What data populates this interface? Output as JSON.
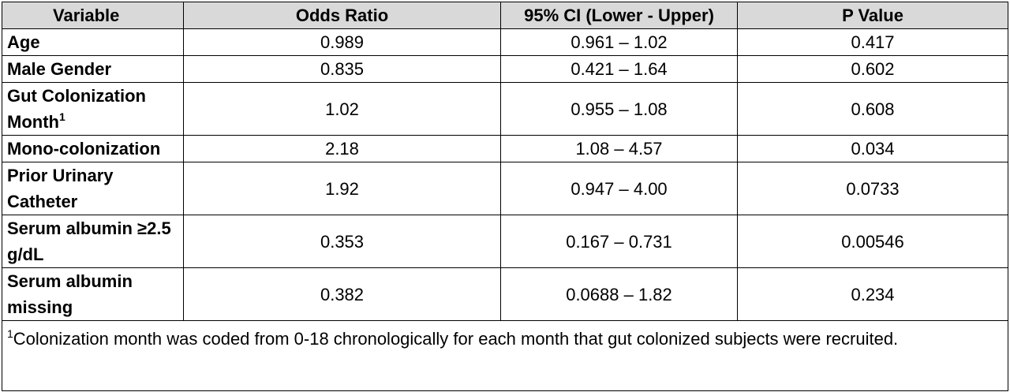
{
  "table": {
    "headers": [
      "Variable",
      "Odds Ratio",
      "95% CI (Lower - Upper)",
      "P Value"
    ],
    "rows": [
      {
        "variable": "Age",
        "sup": "",
        "odds_ratio": "0.989",
        "ci": "0.961 – 1.02",
        "p": "0.417",
        "tall": false
      },
      {
        "variable": "Male Gender",
        "sup": "",
        "odds_ratio": "0.835",
        "ci": "0.421 – 1.64",
        "p": "0.602",
        "tall": false
      },
      {
        "variable": "Gut Colonization Month",
        "sup": "1",
        "odds_ratio": "1.02",
        "ci": "0.955 – 1.08",
        "p": "0.608",
        "tall": true
      },
      {
        "variable": "Mono-colonization",
        "sup": "",
        "odds_ratio": "2.18",
        "ci": "1.08 – 4.57",
        "p": "0.034",
        "tall": false
      },
      {
        "variable": "Prior Urinary Catheter",
        "sup": "",
        "odds_ratio": "1.92",
        "ci": "0.947 – 4.00",
        "p": "0.0733",
        "tall": true
      },
      {
        "variable": "Serum albumin ≥2.5 g/dL",
        "sup": "",
        "odds_ratio": "0.353",
        "ci": "0.167 – 0.731",
        "p": "0.00546",
        "tall": true
      },
      {
        "variable": "Serum albumin missing",
        "sup": "",
        "odds_ratio": "0.382",
        "ci": "0.0688 – 1.82",
        "p": "0.234",
        "tall": true
      }
    ],
    "footnote_marker": "1",
    "footnote": "Colonization month was coded from 0-18 chronologically for each month that gut colonized subjects were recruited."
  }
}
